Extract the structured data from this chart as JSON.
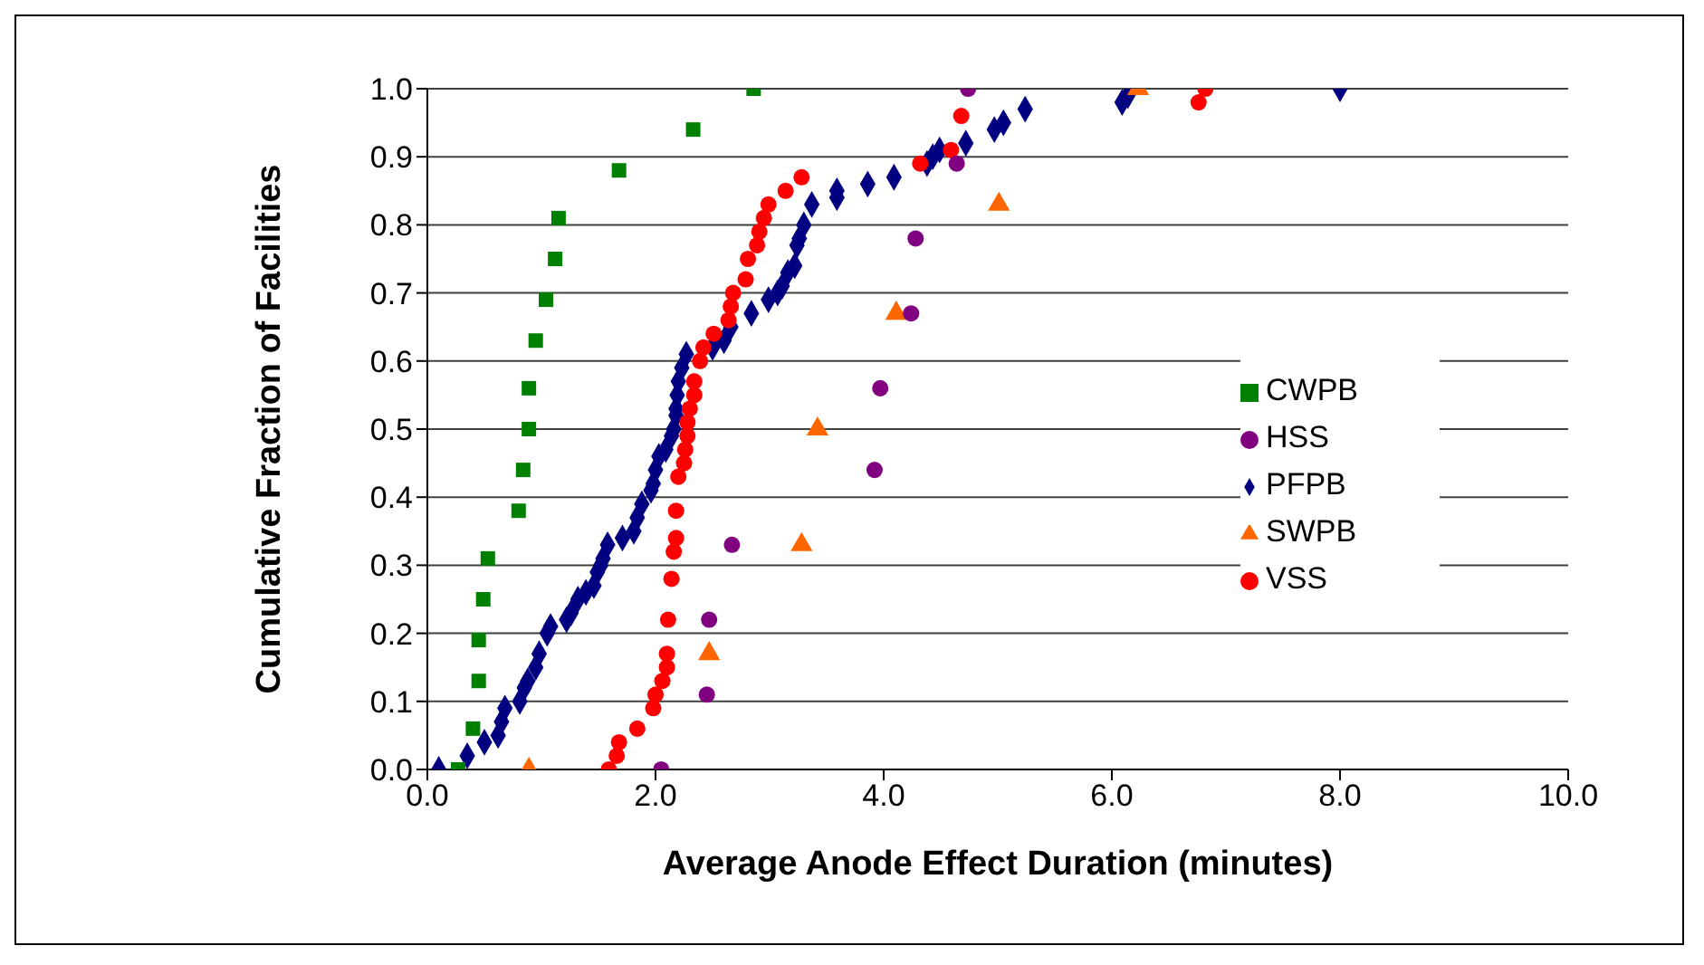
{
  "chart_data": {
    "type": "scatter",
    "xlabel": "Average Anode Effect Duration (minutes)",
    "ylabel": "Cumulative Fraction of Facilities",
    "xlim": [
      0,
      10
    ],
    "xticks": [
      {
        "value": 0,
        "label": "0.0"
      },
      {
        "value": 2,
        "label": "2.0"
      },
      {
        "value": 4,
        "label": "4.0"
      },
      {
        "value": 6,
        "label": "6.0"
      },
      {
        "value": 8,
        "label": "8.0"
      },
      {
        "value": 10,
        "label": "10.0"
      }
    ],
    "ylim": [
      0,
      1
    ],
    "yticks": [
      {
        "value": 0,
        "label": "0.0"
      },
      {
        "value": 0.1,
        "label": "0.1"
      },
      {
        "value": 0.2,
        "label": "0.2"
      },
      {
        "value": 0.3,
        "label": "0.3"
      },
      {
        "value": 0.4,
        "label": "0.4"
      },
      {
        "value": 0.5,
        "label": "0.5"
      },
      {
        "value": 0.6,
        "label": "0.6"
      },
      {
        "value": 0.7,
        "label": "0.7"
      },
      {
        "value": 0.8,
        "label": "0.8"
      },
      {
        "value": 0.9,
        "label": "0.9"
      },
      {
        "value": 1,
        "label": "1.0"
      }
    ],
    "grid": "y",
    "legend": "right",
    "series": [
      {
        "name": "PFPB",
        "color": "#000080",
        "marker": "diamond",
        "x": [
          0.1,
          0.35,
          0.5,
          0.62,
          0.65,
          0.68,
          0.81,
          0.85,
          0.88,
          0.95,
          0.98,
          1.05,
          1.08,
          1.22,
          1.26,
          1.32,
          1.39,
          1.46,
          1.49,
          1.52,
          1.54,
          1.58,
          1.71,
          1.81,
          1.84,
          1.88,
          1.96,
          1.98,
          2.0,
          2.03,
          2.09,
          2.14,
          2.16,
          2.18,
          2.18,
          2.19,
          2.2,
          2.23,
          2.27,
          2.5,
          2.6,
          2.66,
          2.84,
          2.99,
          3.07,
          3.11,
          3.16,
          3.22,
          3.24,
          3.26,
          3.3,
          3.37,
          3.59,
          3.59,
          3.86,
          4.09,
          4.38,
          4.43,
          4.49,
          4.72,
          4.97,
          5.05,
          5.24,
          6.09,
          6.14,
          8.0
        ],
        "values": [
          0.0,
          0.02,
          0.04,
          0.05,
          0.07,
          0.09,
          0.1,
          0.12,
          0.13,
          0.15,
          0.17,
          0.2,
          0.21,
          0.22,
          0.23,
          0.25,
          0.26,
          0.27,
          0.29,
          0.3,
          0.31,
          0.33,
          0.34,
          0.35,
          0.37,
          0.39,
          0.41,
          0.42,
          0.44,
          0.46,
          0.47,
          0.49,
          0.5,
          0.52,
          0.53,
          0.55,
          0.57,
          0.59,
          0.61,
          0.62,
          0.63,
          0.65,
          0.67,
          0.69,
          0.7,
          0.71,
          0.73,
          0.74,
          0.77,
          0.78,
          0.8,
          0.83,
          0.84,
          0.85,
          0.86,
          0.87,
          0.89,
          0.9,
          0.91,
          0.92,
          0.94,
          0.95,
          0.97,
          0.98,
          0.99,
          1.0
        ]
      },
      {
        "name": "CWPB",
        "color": "#008000",
        "marker": "square",
        "x": [
          0.27,
          0.4,
          0.45,
          0.45,
          0.49,
          0.53,
          0.8,
          0.84,
          0.89,
          0.89,
          0.95,
          1.04,
          1.12,
          1.15,
          1.68,
          2.33,
          2.86
        ],
        "values": [
          0.0,
          0.06,
          0.13,
          0.19,
          0.25,
          0.31,
          0.38,
          0.44,
          0.5,
          0.56,
          0.63,
          0.69,
          0.75,
          0.81,
          0.88,
          0.94,
          1.0
        ]
      },
      {
        "name": "SWPB",
        "color": "#ff6600",
        "marker": "triangle",
        "x": [
          0.89,
          2.47,
          3.28,
          3.42,
          4.11,
          5.01,
          6.23
        ],
        "values": [
          0.0,
          0.17,
          0.33,
          0.5,
          0.67,
          0.83,
          1.0
        ]
      },
      {
        "name": "VSS",
        "color": "#ff0000",
        "marker": "circle",
        "x": [
          1.59,
          1.66,
          1.68,
          1.84,
          1.98,
          2.0,
          2.06,
          2.1,
          2.1,
          2.11,
          2.14,
          2.16,
          2.18,
          2.18,
          2.2,
          2.25,
          2.26,
          2.28,
          2.28,
          2.3,
          2.34,
          2.34,
          2.39,
          2.42,
          2.51,
          2.64,
          2.66,
          2.68,
          2.79,
          2.81,
          2.89,
          2.91,
          2.95,
          2.99,
          3.14,
          3.28,
          4.32,
          4.59,
          4.68,
          6.76,
          6.82
        ],
        "values": [
          0.0,
          0.02,
          0.04,
          0.06,
          0.09,
          0.11,
          0.13,
          0.15,
          0.17,
          0.22,
          0.28,
          0.32,
          0.34,
          0.38,
          0.43,
          0.45,
          0.47,
          0.49,
          0.51,
          0.53,
          0.55,
          0.57,
          0.6,
          0.62,
          0.64,
          0.66,
          0.68,
          0.7,
          0.72,
          0.75,
          0.77,
          0.79,
          0.81,
          0.83,
          0.85,
          0.87,
          0.89,
          0.91,
          0.96,
          0.98,
          1.0
        ]
      },
      {
        "name": "HSS",
        "color": "#800080",
        "marker": "circle",
        "x": [
          2.05,
          2.45,
          2.47,
          2.67,
          3.92,
          3.97,
          4.24,
          4.28,
          4.64,
          4.74
        ],
        "values": [
          0.0,
          0.11,
          0.22,
          0.33,
          0.44,
          0.56,
          0.67,
          0.78,
          0.89,
          1.0
        ]
      }
    ]
  }
}
